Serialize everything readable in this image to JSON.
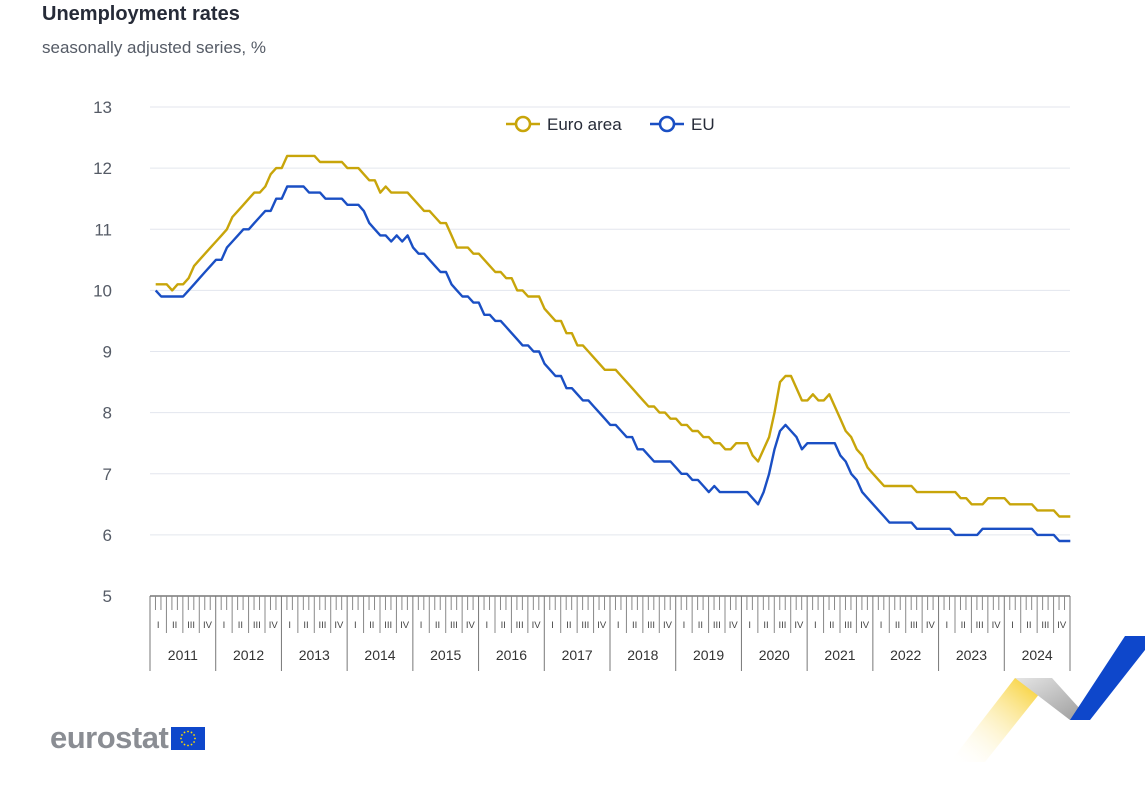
{
  "header": {
    "title": "Unemployment rates",
    "subtitle": "seasonally adjusted series, %"
  },
  "branding": {
    "logo_text": "eurostat"
  },
  "chart_data": {
    "type": "line",
    "ylim": [
      5,
      13
    ],
    "y_ticks": [
      5,
      6,
      7,
      8,
      9,
      10,
      11,
      12,
      13
    ],
    "grid": true,
    "legend_position": "top-center",
    "years": [
      "2011",
      "2012",
      "2013",
      "2014",
      "2015",
      "2016",
      "2017",
      "2018",
      "2019",
      "2020",
      "2021",
      "2022",
      "2023",
      "2024"
    ],
    "quarters": [
      "I",
      "II",
      "III",
      "IV"
    ],
    "x_start": "2011-01",
    "x_end": "2024-12",
    "frequency": "monthly",
    "series": [
      {
        "name": "Euro area",
        "color": "#c8a50a",
        "values": [
          10.1,
          10.1,
          10.1,
          10.0,
          10.1,
          10.1,
          10.2,
          10.4,
          10.5,
          10.6,
          10.7,
          10.8,
          10.9,
          11.0,
          11.2,
          11.3,
          11.4,
          11.5,
          11.6,
          11.6,
          11.7,
          11.9,
          12.0,
          12.0,
          12.2,
          12.2,
          12.2,
          12.2,
          12.2,
          12.2,
          12.1,
          12.1,
          12.1,
          12.1,
          12.1,
          12.0,
          12.0,
          12.0,
          11.9,
          11.8,
          11.8,
          11.6,
          11.7,
          11.6,
          11.6,
          11.6,
          11.6,
          11.5,
          11.4,
          11.3,
          11.3,
          11.2,
          11.1,
          11.1,
          10.9,
          10.7,
          10.7,
          10.7,
          10.6,
          10.6,
          10.5,
          10.4,
          10.3,
          10.3,
          10.2,
          10.2,
          10.0,
          10.0,
          9.9,
          9.9,
          9.9,
          9.7,
          9.6,
          9.5,
          9.5,
          9.3,
          9.3,
          9.1,
          9.1,
          9.0,
          8.9,
          8.8,
          8.7,
          8.7,
          8.7,
          8.6,
          8.5,
          8.4,
          8.3,
          8.2,
          8.1,
          8.1,
          8.0,
          8.0,
          7.9,
          7.9,
          7.8,
          7.8,
          7.7,
          7.7,
          7.6,
          7.6,
          7.5,
          7.5,
          7.4,
          7.4,
          7.5,
          7.5,
          7.5,
          7.3,
          7.2,
          7.4,
          7.6,
          8.0,
          8.5,
          8.6,
          8.6,
          8.4,
          8.2,
          8.2,
          8.3,
          8.2,
          8.2,
          8.3,
          8.1,
          7.9,
          7.7,
          7.6,
          7.4,
          7.3,
          7.1,
          7.0,
          6.9,
          6.8,
          6.8,
          6.8,
          6.8,
          6.8,
          6.8,
          6.7,
          6.7,
          6.7,
          6.7,
          6.7,
          6.7,
          6.7,
          6.7,
          6.6,
          6.6,
          6.5,
          6.5,
          6.5,
          6.6,
          6.6,
          6.6,
          6.6,
          6.5,
          6.5,
          6.5,
          6.5,
          6.5,
          6.4,
          6.4,
          6.4,
          6.4,
          6.3,
          6.3,
          6.3
        ]
      },
      {
        "name": "EU",
        "color": "#1a4fc4",
        "values": [
          10.0,
          9.9,
          9.9,
          9.9,
          9.9,
          9.9,
          10.0,
          10.1,
          10.2,
          10.3,
          10.4,
          10.5,
          10.5,
          10.7,
          10.8,
          10.9,
          11.0,
          11.0,
          11.1,
          11.2,
          11.3,
          11.3,
          11.5,
          11.5,
          11.7,
          11.7,
          11.7,
          11.7,
          11.6,
          11.6,
          11.6,
          11.5,
          11.5,
          11.5,
          11.5,
          11.4,
          11.4,
          11.4,
          11.3,
          11.1,
          11.0,
          10.9,
          10.9,
          10.8,
          10.9,
          10.8,
          10.9,
          10.7,
          10.6,
          10.6,
          10.5,
          10.4,
          10.3,
          10.3,
          10.1,
          10.0,
          9.9,
          9.9,
          9.8,
          9.8,
          9.6,
          9.6,
          9.5,
          9.5,
          9.4,
          9.3,
          9.2,
          9.1,
          9.1,
          9.0,
          9.0,
          8.8,
          8.7,
          8.6,
          8.6,
          8.4,
          8.4,
          8.3,
          8.2,
          8.2,
          8.1,
          8.0,
          7.9,
          7.8,
          7.8,
          7.7,
          7.6,
          7.6,
          7.4,
          7.4,
          7.3,
          7.2,
          7.2,
          7.2,
          7.2,
          7.1,
          7.0,
          7.0,
          6.9,
          6.9,
          6.8,
          6.7,
          6.8,
          6.7,
          6.7,
          6.7,
          6.7,
          6.7,
          6.7,
          6.6,
          6.5,
          6.7,
          7.0,
          7.4,
          7.7,
          7.8,
          7.7,
          7.6,
          7.4,
          7.5,
          7.5,
          7.5,
          7.5,
          7.5,
          7.5,
          7.3,
          7.2,
          7.0,
          6.9,
          6.7,
          6.6,
          6.5,
          6.4,
          6.3,
          6.2,
          6.2,
          6.2,
          6.2,
          6.2,
          6.1,
          6.1,
          6.1,
          6.1,
          6.1,
          6.1,
          6.1,
          6.0,
          6.0,
          6.0,
          6.0,
          6.0,
          6.1,
          6.1,
          6.1,
          6.1,
          6.1,
          6.1,
          6.1,
          6.1,
          6.1,
          6.1,
          6.0,
          6.0,
          6.0,
          6.0,
          5.9,
          5.9,
          5.9
        ]
      }
    ]
  }
}
